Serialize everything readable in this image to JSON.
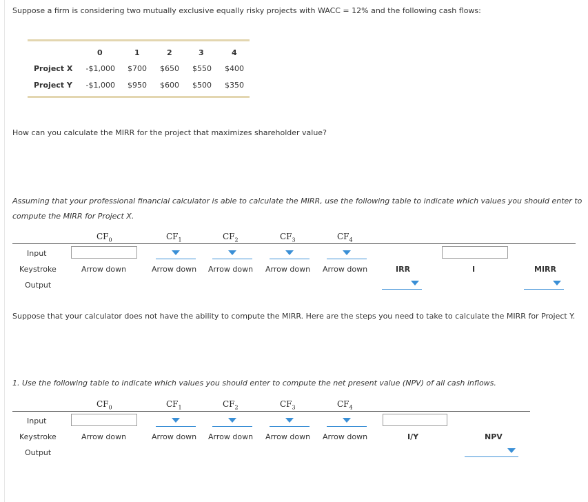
{
  "intro": "Suppose a firm is considering two mutually exclusive equally risky projects with WACC = 12% and the following cash flows:",
  "cash_flow_table": {
    "years": [
      "0",
      "1",
      "2",
      "3",
      "4"
    ],
    "rows": [
      {
        "label": "Project X",
        "values": [
          "-$1,000",
          "$700",
          "$650",
          "$550",
          "$400"
        ]
      },
      {
        "label": "Project Y",
        "values": [
          "-$1,000",
          "$950",
          "$600",
          "$500",
          "$350"
        ]
      }
    ]
  },
  "question": "How can you calculate the MIRR for the project that maximizes shareholder value?",
  "mirr_instruction_line1": "Assuming that your professional financial calculator is able to calculate the MIRR, use the following table to indicate which values you should enter to",
  "mirr_instruction_line2": "compute the MIRR for Project X.",
  "row_labels": {
    "input": "Input",
    "keystroke": "Keystroke",
    "output": "Output"
  },
  "cf_headers": [
    {
      "base": "CF",
      "sub": "0"
    },
    {
      "base": "CF",
      "sub": "1"
    },
    {
      "base": "CF",
      "sub": "2"
    },
    {
      "base": "CF",
      "sub": "3"
    },
    {
      "base": "CF",
      "sub": "4"
    }
  ],
  "keystroke_label": "Arrow down",
  "table1_extra": {
    "irr": "IRR",
    "i": "I",
    "mirr": "MIRR"
  },
  "steps_intro": "Suppose that your calculator does not have the ability to compute the MIRR. Here are the steps you need to take to calculate the MIRR for Project Y.",
  "step1": "1. Use the following table to indicate which values you should enter to compute the net present value (NPV) of all cash inflows.",
  "table2_extra": {
    "iy": "I/Y",
    "npv": "NPV"
  },
  "colors": {
    "accent": "#3a8fd6",
    "rule": "#e3d6b0"
  }
}
